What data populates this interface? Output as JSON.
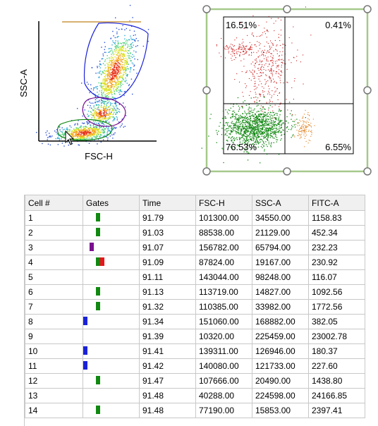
{
  "scatter_plot": {
    "x_label": "FSC-H",
    "y_label": "SSC-A"
  },
  "quadrant_plot": {
    "quadrants": {
      "top_left": "16.51%",
      "top_right": "0.41%",
      "bottom_left": "76.53%",
      "bottom_right": "6.55%"
    }
  },
  "gate_colors": {
    "green": "#118811",
    "purple": "#7a0f8f",
    "red": "#e8141c",
    "blue": "#1a22d8"
  },
  "table": {
    "columns": [
      "Cell #",
      "Gates",
      "Time",
      "FSC-H",
      "SSC-A",
      "FITC-A"
    ],
    "rows": [
      {
        "cell": "1",
        "gates": [
          "green"
        ],
        "time": "91.79",
        "fsc": "101300.00",
        "ssc": "34550.00",
        "fitc": "1158.83"
      },
      {
        "cell": "2",
        "gates": [
          "green"
        ],
        "time": "91.03",
        "fsc": "88538.00",
        "ssc": "21129.00",
        "fitc": "452.34"
      },
      {
        "cell": "3",
        "gates": [
          "purple"
        ],
        "time": "91.07",
        "fsc": "156782.00",
        "ssc": "65794.00",
        "fitc": "232.23"
      },
      {
        "cell": "4",
        "gates": [
          "green",
          "red"
        ],
        "time": "91.09",
        "fsc": "87824.00",
        "ssc": "19167.00",
        "fitc": "230.92"
      },
      {
        "cell": "5",
        "gates": [],
        "time": "91.11",
        "fsc": "143044.00",
        "ssc": "98248.00",
        "fitc": "116.07"
      },
      {
        "cell": "6",
        "gates": [
          "green"
        ],
        "time": "91.13",
        "fsc": "113719.00",
        "ssc": "14827.00",
        "fitc": "1092.56"
      },
      {
        "cell": "7",
        "gates": [
          "green"
        ],
        "time": "91.32",
        "fsc": "110385.00",
        "ssc": "33982.00",
        "fitc": "1772.56"
      },
      {
        "cell": "8",
        "gates": [
          "blue"
        ],
        "time": "91.34",
        "fsc": "151060.00",
        "ssc": "168882.00",
        "fitc": "382.05"
      },
      {
        "cell": "9",
        "gates": [],
        "time": "91.39",
        "fsc": "10320.00",
        "ssc": "225459.00",
        "fitc": "23002.78"
      },
      {
        "cell": "10",
        "gates": [
          "blue"
        ],
        "time": "91.41",
        "fsc": "139311.00",
        "ssc": "126946.00",
        "fitc": "180.37"
      },
      {
        "cell": "11",
        "gates": [
          "blue"
        ],
        "time": "91.42",
        "fsc": "140080.00",
        "ssc": "121733.00",
        "fitc": "227.60"
      },
      {
        "cell": "12",
        "gates": [
          "green"
        ],
        "time": "91.47",
        "fsc": "107666.00",
        "ssc": "20490.00",
        "fitc": "1438.80"
      },
      {
        "cell": "13",
        "gates": [],
        "time": "91.48",
        "fsc": "40288.00",
        "ssc": "224598.00",
        "fitc": "24166.85"
      },
      {
        "cell": "14",
        "gates": [
          "green"
        ],
        "time": "91.48",
        "fsc": "77190.00",
        "ssc": "15853.00",
        "fitc": "2397.41"
      }
    ]
  }
}
